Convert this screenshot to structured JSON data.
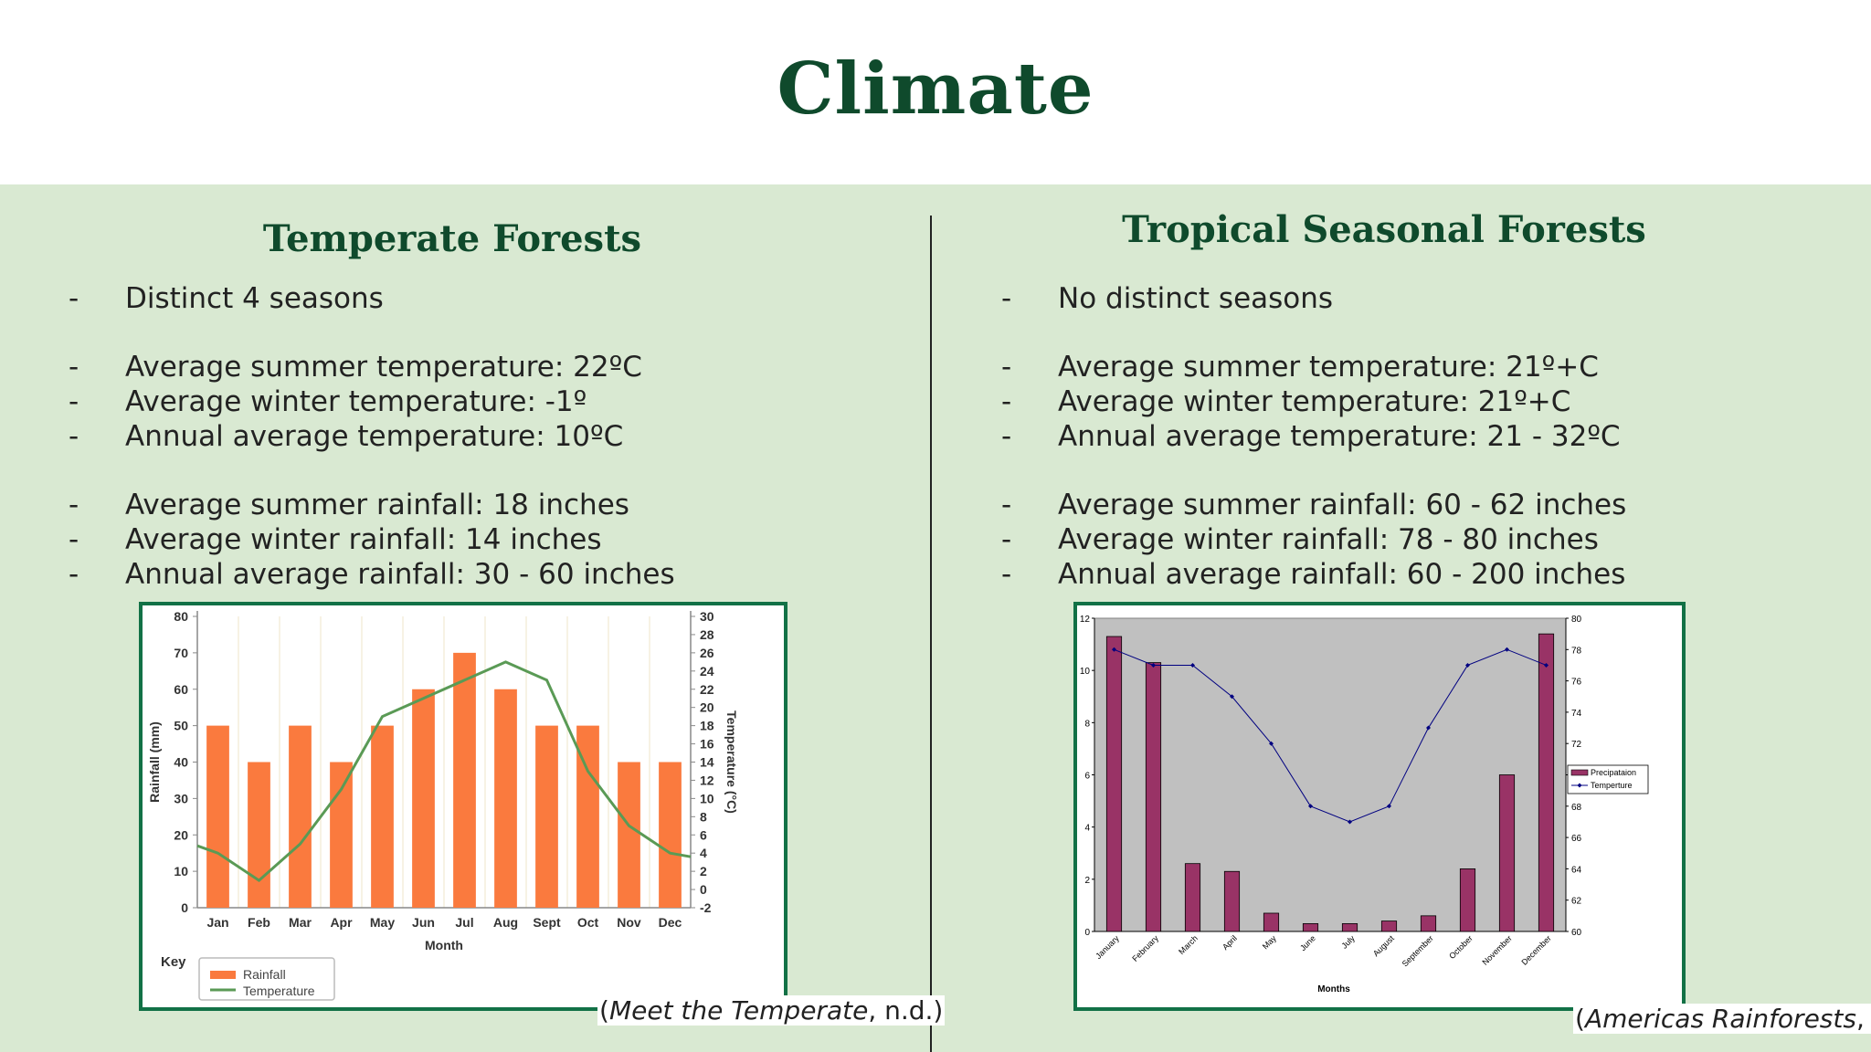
{
  "slide": {
    "title": "Climate"
  },
  "temperate": {
    "heading": "Temperate Forests",
    "bullets": [
      {
        "text": "Distinct 4 seasons"
      },
      {
        "text": "Average summer temperature: 22ºC"
      },
      {
        "text": "Average winter temperature: -1º"
      },
      {
        "text": "Annual average temperature: 10ºC"
      },
      {
        "text": "Average summer rainfall: 18 inches"
      },
      {
        "text": "Average winter rainfall: 14 inches"
      },
      {
        "text": "Annual average rainfall: 30 - 60 inches"
      }
    ],
    "citation": {
      "work": "Meet the Temperate",
      "rest": ", n.d.)",
      "open": "("
    }
  },
  "tropical": {
    "heading": "Tropical Seasonal Forests",
    "bullets": [
      {
        "text": "No distinct seasons"
      },
      {
        "text": "Average summer temperature: 21º+C"
      },
      {
        "text": "Average winter temperature: 21º+C"
      },
      {
        "text": "Annual average temperature: 21 - 32ºC"
      },
      {
        "text": "Average summer rainfall: 60 - 62 inches"
      },
      {
        "text": "Average winter rainfall: 78 - 80 inches"
      },
      {
        "text": "Annual average rainfall: 60 - 200 inches"
      }
    ],
    "citation": {
      "work": "Americas Rainforests",
      "rest": ", n.d",
      "open": "("
    }
  },
  "chart_data": [
    {
      "type": "bar",
      "categories": [
        "Jan",
        "Feb",
        "Mar",
        "Apr",
        "May",
        "Jun",
        "Jul",
        "Aug",
        "Sept",
        "Oct",
        "Nov",
        "Dec"
      ],
      "series": [
        {
          "name": "Rainfall",
          "chart": "bar",
          "axis": "left",
          "values": [
            50,
            40,
            50,
            40,
            50,
            60,
            70,
            60,
            50,
            50,
            40,
            40
          ],
          "color": "#fa7a3e"
        },
        {
          "name": "Temperature",
          "chart": "line",
          "axis": "right",
          "values": [
            4,
            1,
            5,
            11,
            19,
            21,
            23,
            25,
            23,
            13,
            7,
            4
          ],
          "color": "#5a9a55"
        }
      ],
      "xlabel": "Month",
      "ylabel": "Rainfall (mm)",
      "y2label": "Temperature (°C)",
      "ylim": [
        0,
        80
      ],
      "yticks": [
        0,
        10,
        20,
        30,
        40,
        50,
        60,
        70,
        80
      ],
      "y2lim": [
        -2,
        30
      ],
      "y2ticks": [
        -2,
        0,
        2,
        4,
        6,
        8,
        10,
        12,
        14,
        16,
        18,
        20,
        22,
        24,
        26,
        28,
        30
      ],
      "legend_title": "Key",
      "legend_position": "bottom-left",
      "grid": "vertical"
    },
    {
      "type": "bar",
      "categories": [
        "January",
        "February",
        "March",
        "April",
        "May",
        "June",
        "July",
        "August",
        "September",
        "October",
        "November",
        "December"
      ],
      "series": [
        {
          "name": "Precipataion",
          "chart": "bar",
          "axis": "left",
          "values": [
            11.3,
            10.3,
            2.6,
            2.3,
            0.7,
            0.3,
            0.3,
            0.4,
            0.6,
            2.4,
            6.0,
            11.4
          ],
          "color": "#993366"
        },
        {
          "name": "Temperture",
          "chart": "line",
          "axis": "right",
          "values": [
            78,
            77,
            77,
            75,
            72,
            68,
            67,
            68,
            73,
            77,
            78,
            77
          ],
          "color": "#000080"
        }
      ],
      "xlabel": "Months",
      "ylabel": "",
      "y2label": "",
      "ylim": [
        0,
        12
      ],
      "yticks": [
        0,
        2,
        4,
        6,
        8,
        10,
        12
      ],
      "y2lim": [
        60,
        80
      ],
      "y2ticks": [
        60,
        62,
        64,
        66,
        68,
        70,
        72,
        74,
        76,
        78,
        80
      ],
      "legend_position": "right",
      "grid": "none",
      "plot_background": "#c0c0c0"
    }
  ]
}
